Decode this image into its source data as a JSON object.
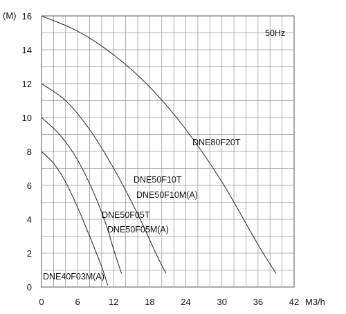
{
  "chart_data": {
    "type": "line",
    "title": "",
    "xlabel": "M3/h",
    "ylabel": "(M)",
    "xlim": [
      0,
      42
    ],
    "ylim": [
      0,
      16
    ],
    "x_ticks": [
      0,
      6,
      12,
      18,
      24,
      30,
      36,
      42
    ],
    "y_ticks": [
      0,
      2,
      4,
      6,
      8,
      10,
      12,
      14,
      16
    ],
    "grid": true,
    "frequency_label": "50Hz",
    "series": [
      {
        "name": "DNE40F03M(A)",
        "points": [
          [
            0,
            8
          ],
          [
            2,
            7.3
          ],
          [
            4,
            6.2
          ],
          [
            6,
            4.7
          ],
          [
            8,
            3.0
          ],
          [
            10,
            1.2
          ],
          [
            11,
            0.1
          ]
        ],
        "labels": [
          "DNE40F03M(A)"
        ]
      },
      {
        "name": "DNE50F05T / DNE50F05M(A)",
        "points": [
          [
            0,
            10
          ],
          [
            3,
            9.0
          ],
          [
            6,
            7.5
          ],
          [
            9,
            5.3
          ],
          [
            11,
            3.4
          ],
          [
            12,
            2.2
          ],
          [
            13.3,
            0.8
          ]
        ],
        "labels": [
          "DNE50F05T",
          "DNE50F05M(A)"
        ]
      },
      {
        "name": "DNE50F10T / DNE50F10M(A)",
        "points": [
          [
            0,
            12
          ],
          [
            4,
            11.0
          ],
          [
            8,
            9.3
          ],
          [
            12,
            7.0
          ],
          [
            16,
            4.3
          ],
          [
            19,
            2.0
          ],
          [
            20.7,
            0.8
          ]
        ],
        "labels": [
          "DNE50F10T",
          "DNE50F10M(A)"
        ]
      },
      {
        "name": "DNE80F20T",
        "points": [
          [
            0,
            16
          ],
          [
            6,
            15.1
          ],
          [
            12,
            13.7
          ],
          [
            18,
            11.8
          ],
          [
            24,
            9.3
          ],
          [
            30,
            6.2
          ],
          [
            36,
            2.5
          ],
          [
            39,
            0.8
          ]
        ],
        "labels": [
          "DNE80F20T"
        ]
      }
    ]
  }
}
